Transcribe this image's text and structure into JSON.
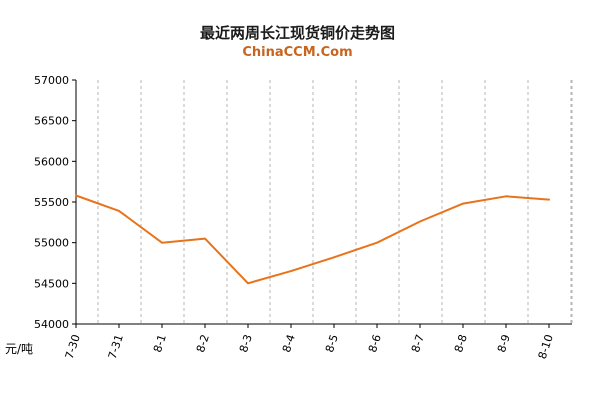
{
  "chart_data": {
    "type": "line",
    "title": "最近两周长江现货铜价走势图",
    "subtitle": "ChinaCCM.Com",
    "ylabel": "元/吨",
    "categories": [
      "7-30",
      "7-31",
      "8-1",
      "8-2",
      "8-3",
      "8-4",
      "8-5",
      "8-6",
      "8-7",
      "8-8",
      "8-9",
      "8-10"
    ],
    "series": [
      {
        "values": [
          55580,
          55390,
          55000,
          55050,
          54500,
          54650,
          54820,
          55000,
          55260,
          55480,
          55570,
          55530
        ]
      }
    ],
    "yticks": [
      54000,
      54500,
      55000,
      55500,
      56000,
      56500,
      57000
    ],
    "ylim": [
      54000,
      57000
    ],
    "grid": "dashed-vertical",
    "colors": {
      "line": "#e8731a",
      "subtitle": "#c8641e",
      "grid": "#b5b5b5",
      "axis": "#000000"
    }
  }
}
